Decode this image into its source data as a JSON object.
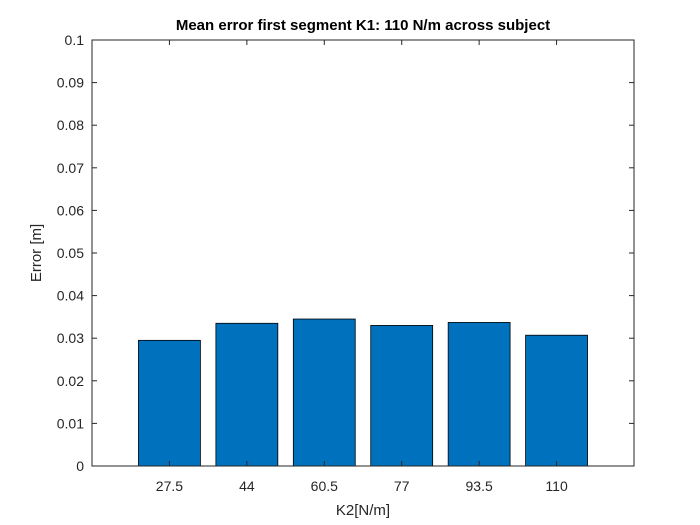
{
  "chart_data": {
    "type": "bar",
    "title": "Mean error first segment K1: 110 N/m across subject",
    "xlabel": "K2[N/m]",
    "ylabel": "Error [m]",
    "categories": [
      "27.5",
      "44",
      "60.5",
      "77",
      "93.5",
      "110"
    ],
    "values": [
      0.0295,
      0.0335,
      0.0345,
      0.033,
      0.0337,
      0.0307
    ],
    "ylim": [
      0,
      0.1
    ],
    "yticks": [
      "0",
      "0.01",
      "0.02",
      "0.03",
      "0.04",
      "0.05",
      "0.06",
      "0.07",
      "0.08",
      "0.09",
      "0.1"
    ],
    "grid": false,
    "legend": "none",
    "colors": {
      "bar_fill": "#0072BD",
      "bar_edge": "#000000",
      "axis": "#262626",
      "background": "#ffffff"
    }
  }
}
